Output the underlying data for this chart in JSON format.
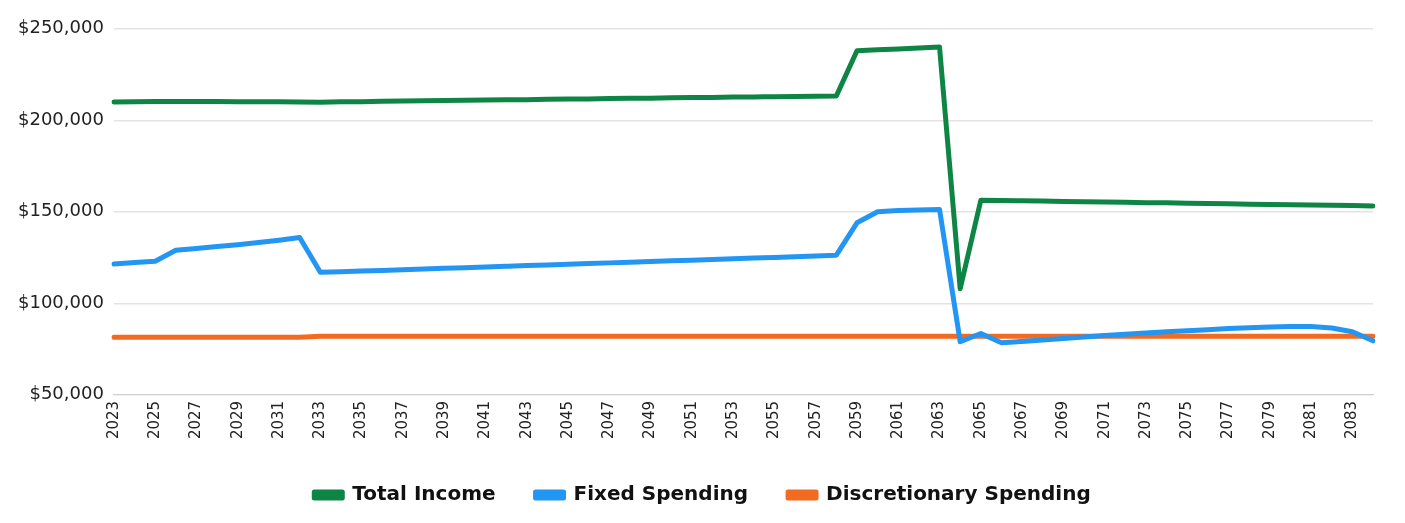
{
  "chart_data": {
    "type": "line",
    "categories": [
      "2023",
      null,
      "2025",
      null,
      "2027",
      null,
      "2029",
      null,
      "2031",
      null,
      "2033",
      null,
      "2035",
      null,
      "2037",
      null,
      "2039",
      null,
      "2041",
      null,
      "2043",
      null,
      "2045",
      null,
      "2047",
      null,
      "2049",
      null,
      "2051",
      null,
      "2053",
      null,
      "2055",
      null,
      "2057",
      null,
      "2059",
      null,
      "2061",
      null,
      "2063",
      null,
      "2065",
      null,
      "2067",
      null,
      "2069",
      null,
      "2071",
      null,
      "2073",
      null,
      "2075",
      null,
      "2077",
      null,
      "2079",
      null,
      "2081",
      null,
      "2083",
      null
    ],
    "series": [
      {
        "name": "Total Income",
        "color": "#0e8545",
        "values": [
          210000,
          210200,
          210300,
          210300,
          210300,
          210300,
          210200,
          210200,
          210100,
          210000,
          209900,
          210100,
          210200,
          210400,
          210500,
          210700,
          210800,
          210900,
          211100,
          211200,
          211300,
          211500,
          211600,
          211700,
          211900,
          212000,
          212100,
          212300,
          212400,
          212500,
          212700,
          212800,
          212900,
          213000,
          213100,
          213300,
          238000,
          238500,
          239000,
          239500,
          240000,
          108000,
          156300,
          156200,
          156000,
          155900,
          155700,
          155500,
          155400,
          155200,
          155000,
          154900,
          154700,
          154500,
          154400,
          154200,
          154000,
          153900,
          153700,
          153600,
          153400,
          153200
        ]
      },
      {
        "name": "Fixed Spending",
        "color": "#2396f3",
        "values": [
          121500,
          122300,
          123000,
          129000,
          130000,
          131000,
          132000,
          133200,
          134500,
          136000,
          117000,
          117200,
          117600,
          118000,
          118300,
          118700,
          119100,
          119500,
          119900,
          120200,
          120600,
          121000,
          121400,
          121700,
          122100,
          122500,
          122900,
          123200,
          123600,
          124000,
          124400,
          124800,
          125100,
          125500,
          125900,
          126300,
          144000,
          150000,
          150700,
          151000,
          151300,
          79000,
          83500,
          78500,
          79200,
          80000,
          80800,
          81600,
          82400,
          83100,
          83800,
          84400,
          85000,
          85600,
          86200,
          86700,
          87100,
          87300,
          87300,
          86500,
          84500,
          79500
        ]
      },
      {
        "name": "Discretionary Spending",
        "color": "#f26b21",
        "values": [
          81500,
          81500,
          81500,
          81500,
          81500,
          81500,
          81500,
          81500,
          81500,
          81500,
          82000,
          82000,
          82000,
          82000,
          82000,
          82000,
          82000,
          82000,
          82000,
          82000,
          82000,
          82000,
          82000,
          82000,
          82000,
          82000,
          82000,
          82000,
          82000,
          82000,
          82000,
          82000,
          82000,
          82000,
          82000,
          82000,
          82000,
          82000,
          82000,
          82000,
          82000,
          82000,
          82000,
          82000,
          82000,
          82000,
          82000,
          82000,
          82000,
          82000,
          82000,
          82000,
          82000,
          82000,
          82000,
          82000,
          82000,
          82000,
          82000,
          82000,
          82000,
          82000
        ]
      }
    ],
    "ylim": [
      50000,
      250000
    ],
    "yticks": [
      {
        "value": 50000,
        "label": "$50,000"
      },
      {
        "value": 100000,
        "label": "$100,000"
      },
      {
        "value": 150000,
        "label": "$150,000"
      },
      {
        "value": 200000,
        "label": "$200,000"
      },
      {
        "value": 250000,
        "label": "$250,000"
      }
    ],
    "grid": "y",
    "legend": "bottom",
    "marker": "none",
    "line_style": "solid"
  }
}
